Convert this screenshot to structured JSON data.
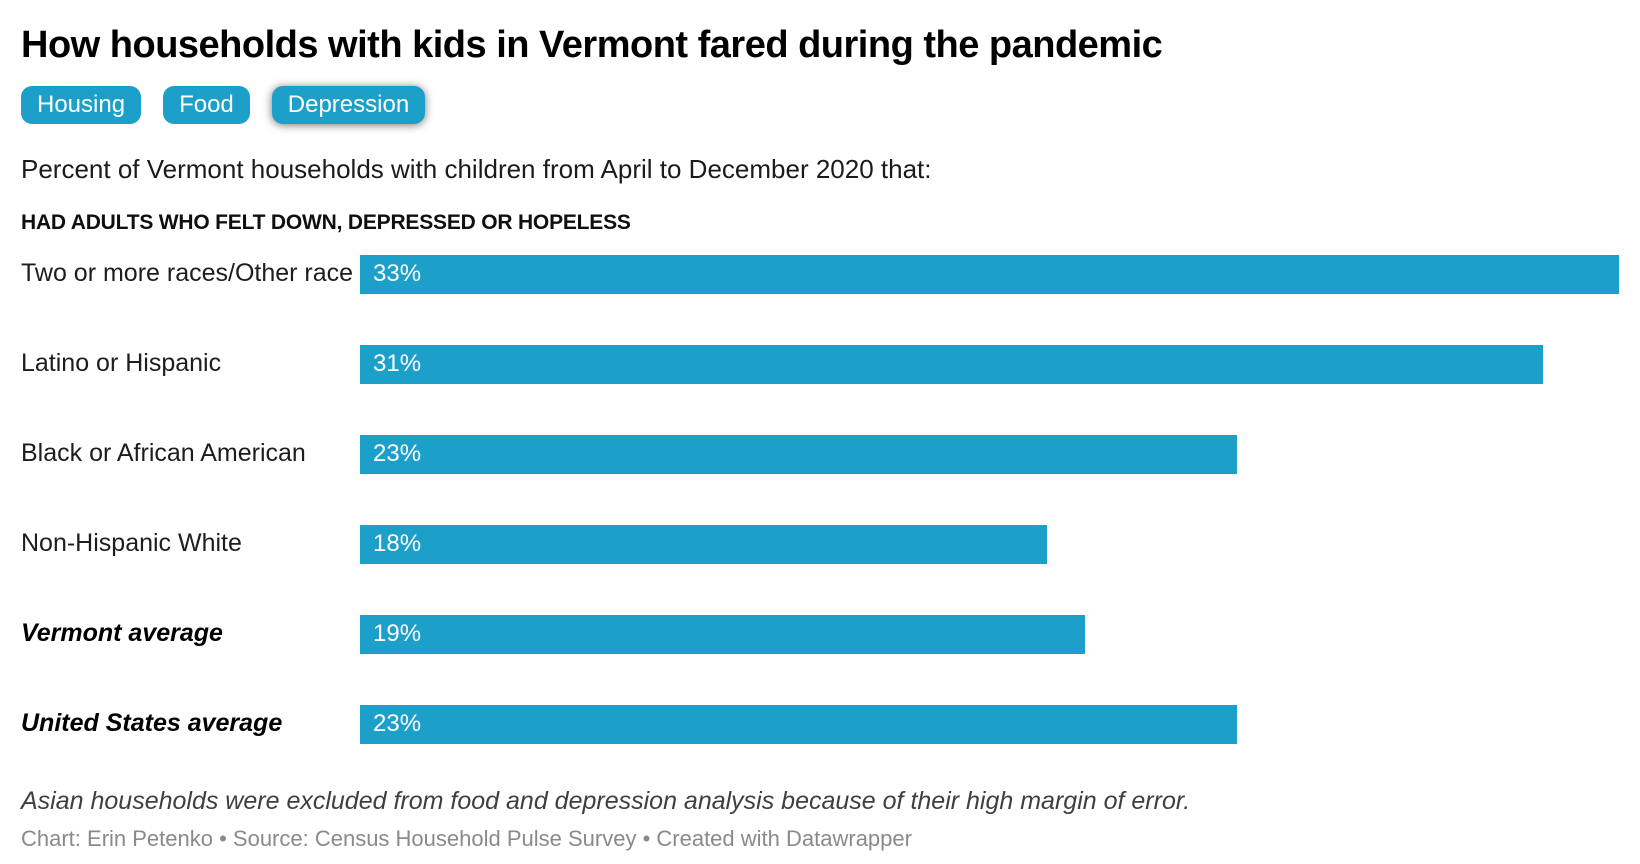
{
  "colors": {
    "accent": "#1CA0CA",
    "bar_label": "#ffffff",
    "title": "#000000",
    "note_text": "#3f3f3f",
    "credit_text": "#8a8a8a"
  },
  "header": {
    "title": "How households with kids in Vermont fared during the pandemic",
    "tabs": [
      {
        "label": "Housing",
        "active": false
      },
      {
        "label": "Food",
        "active": false
      },
      {
        "label": "Depression",
        "active": true
      }
    ],
    "subtitle": "Percent of Vermont households with children from April to December 2020 that:"
  },
  "chart_data": {
    "type": "bar",
    "orientation": "horizontal",
    "section_label": "HAD ADULTS WHO FELT DOWN, DEPRESSED OR HOPELESS",
    "categories": [
      "Two or more races/Other race",
      "Latino or Hispanic",
      "Black or African American",
      "Non-Hispanic White",
      "Vermont average",
      "United States average"
    ],
    "values": [
      33,
      31,
      23,
      18,
      19,
      23
    ],
    "value_labels": [
      "33%",
      "31%",
      "23%",
      "18%",
      "19%",
      "23%"
    ],
    "emphasized": [
      false,
      false,
      false,
      false,
      true,
      true
    ],
    "xlim": [
      0,
      33
    ],
    "value_label_position": "inside-start",
    "grid": false,
    "legend": "none",
    "bar_color": "#1CA0CA"
  },
  "footer": {
    "note": "Asian households were excluded from food and depression analysis because of their high margin of error.",
    "credit": "Chart: Erin Petenko • Source: Census Household Pulse Survey • Created with Datawrapper"
  }
}
